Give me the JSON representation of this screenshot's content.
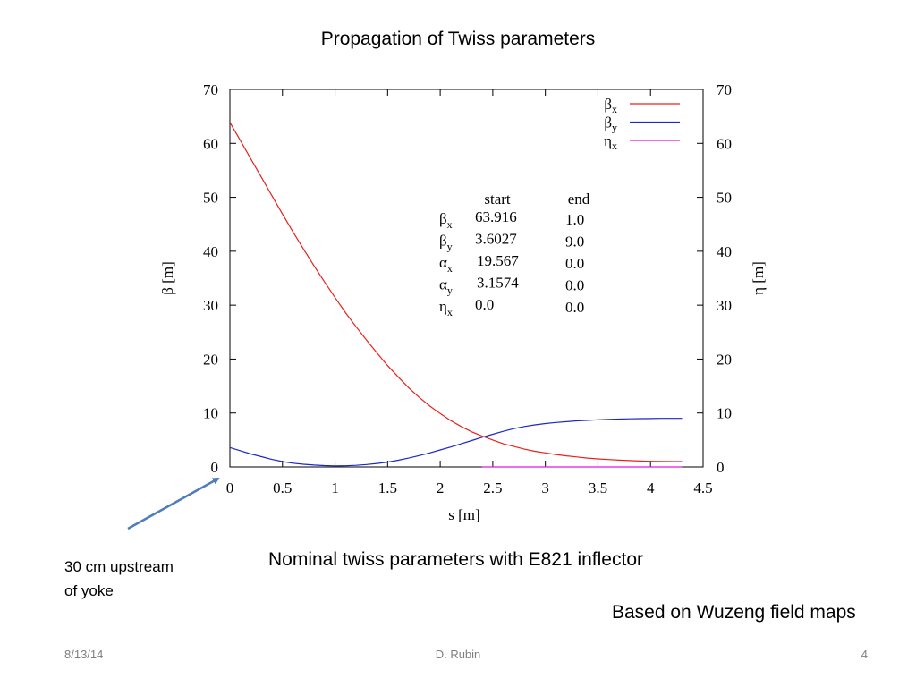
{
  "slide": {
    "title": "Propagation of Twiss parameters",
    "caption": "Nominal twiss parameters with E821 inflector",
    "note_line1": "30 cm upstream",
    "note_line2": "of yoke",
    "based_on": "Based on Wuzeng field maps",
    "footer_date": "8/13/14",
    "footer_author": "D. Rubin",
    "footer_page": "4"
  },
  "chart_data": {
    "type": "line",
    "xlabel": "s [m]",
    "ylabel": "β [m]",
    "y2label": "η [m]",
    "xlim": [
      0,
      4.5
    ],
    "ylim": [
      0,
      70
    ],
    "y2lim": [
      0,
      70
    ],
    "x_ticks": [
      "0",
      "0.5",
      "1",
      "1.5",
      "2",
      "2.5",
      "3",
      "3.5",
      "4",
      "4.5"
    ],
    "y_ticks": [
      "0",
      "10",
      "20",
      "30",
      "40",
      "50",
      "60",
      "70"
    ],
    "legend_position": "top-right",
    "series": [
      {
        "name": "βx",
        "color": "#e8211d",
        "x": [
          0,
          0.1,
          0.2,
          0.3,
          0.4,
          0.5,
          0.6,
          0.7,
          0.8,
          0.9,
          1.0,
          1.1,
          1.2,
          1.3,
          1.4,
          1.5,
          1.6,
          1.7,
          1.8,
          1.9,
          2.0,
          2.1,
          2.2,
          2.3,
          2.4,
          2.5,
          2.6,
          2.7,
          2.8,
          2.9,
          3.0,
          3.1,
          3.2,
          3.3,
          3.4,
          3.5,
          3.6,
          3.7,
          3.8,
          3.9,
          4.0,
          4.1,
          4.2,
          4.3
        ],
        "y": [
          63.9,
          60.5,
          57.1,
          53.7,
          50.3,
          46.9,
          43.6,
          40.4,
          37.3,
          34.3,
          31.4,
          28.6,
          26.0,
          23.5,
          21.1,
          18.8,
          16.7,
          14.7,
          12.9,
          11.3,
          9.9,
          8.6,
          7.5,
          6.5,
          5.7,
          5.0,
          4.3,
          3.8,
          3.3,
          2.9,
          2.6,
          2.3,
          2.05,
          1.85,
          1.65,
          1.5,
          1.37,
          1.26,
          1.17,
          1.1,
          1.05,
          1.02,
          1.0,
          1.0
        ]
      },
      {
        "name": "βy",
        "color": "#1c27c4",
        "x": [
          0,
          0.1,
          0.2,
          0.3,
          0.4,
          0.5,
          0.6,
          0.7,
          0.8,
          0.9,
          1.0,
          1.1,
          1.2,
          1.3,
          1.4,
          1.5,
          1.6,
          1.7,
          1.8,
          1.9,
          2.0,
          2.1,
          2.2,
          2.3,
          2.4,
          2.5,
          2.6,
          2.7,
          2.8,
          2.9,
          3.0,
          3.1,
          3.2,
          3.3,
          3.4,
          3.5,
          3.6,
          3.7,
          3.8,
          3.9,
          4.0,
          4.1,
          4.2,
          4.3
        ],
        "y": [
          3.6,
          3.0,
          2.4,
          1.9,
          1.4,
          1.0,
          0.7,
          0.5,
          0.35,
          0.25,
          0.2,
          0.22,
          0.3,
          0.45,
          0.65,
          0.9,
          1.25,
          1.65,
          2.1,
          2.6,
          3.15,
          3.7,
          4.3,
          4.9,
          5.5,
          6.05,
          6.6,
          7.1,
          7.5,
          7.8,
          8.05,
          8.25,
          8.4,
          8.55,
          8.65,
          8.75,
          8.82,
          8.88,
          8.92,
          8.96,
          8.98,
          9.0,
          9.0,
          9.0
        ]
      },
      {
        "name": "ηx",
        "color": "#e817e0",
        "x": [
          2.4,
          4.3
        ],
        "y": [
          0.0,
          0.0
        ]
      }
    ],
    "table": {
      "col_start": "start",
      "col_end": "end",
      "rows": [
        {
          "sym": "β",
          "sub": "x",
          "start": "63.916",
          "end": "1.0"
        },
        {
          "sym": "β",
          "sub": "y",
          "start": "3.6027",
          "end": "9.0"
        },
        {
          "sym": "α",
          "sub": "x",
          "start": "19.567",
          "end": "0.0"
        },
        {
          "sym": "α",
          "sub": "y",
          "start": "3.1574",
          "end": "0.0"
        },
        {
          "sym": "η",
          "sub": "x",
          "start": "0.0",
          "end": "0.0"
        }
      ]
    },
    "arrow_color": "#4f7dbb"
  }
}
